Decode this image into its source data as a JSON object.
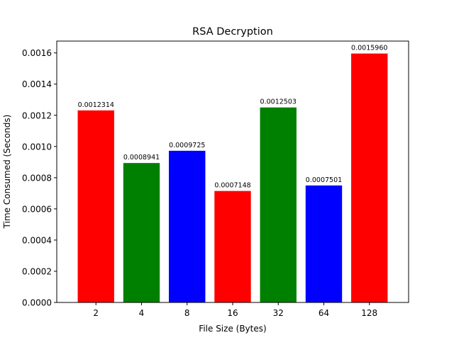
{
  "chart_data": {
    "type": "bar",
    "title": "RSA Decryption",
    "xlabel": "File Size (Bytes)",
    "ylabel": "Time Consumed (Seconds)",
    "categories": [
      "2",
      "4",
      "8",
      "16",
      "32",
      "64",
      "128"
    ],
    "values": [
      0.0012314,
      0.0008941,
      0.0009725,
      0.0007148,
      0.0012503,
      0.0007501,
      0.001596
    ],
    "data_labels": [
      "0.0012314",
      "0.0008941",
      "0.0009725",
      "0.0007148",
      "0.0012503",
      "0.0007501",
      "0.0015960"
    ],
    "bar_colors": [
      "#ff0000",
      "#008000",
      "#0000ff",
      "#ff0000",
      "#008000",
      "#0000ff",
      "#ff0000"
    ],
    "ylim": [
      0,
      0.0016758
    ],
    "yticks": [
      0,
      0.0002,
      0.0004,
      0.0006,
      0.0008,
      0.001,
      0.0012,
      0.0014,
      0.0016
    ],
    "ytick_labels": [
      "0.0000",
      "0.0002",
      "0.0004",
      "0.0006",
      "0.0008",
      "0.0010",
      "0.0012",
      "0.0014",
      "0.0016"
    ],
    "grid": false,
    "legend": "none"
  }
}
